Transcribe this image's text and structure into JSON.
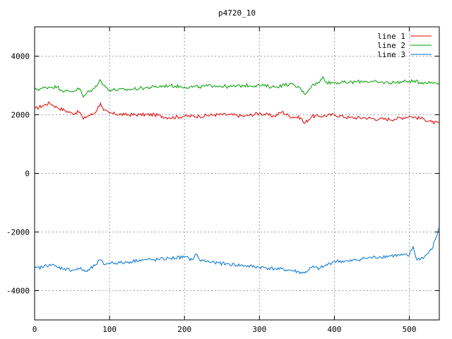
{
  "chart_data": {
    "type": "line",
    "title": "p4720_10",
    "xlabel": "",
    "ylabel": "",
    "xlim": [
      0,
      540
    ],
    "ylim": [
      -5000,
      5000
    ],
    "xticks": [
      0,
      100,
      200,
      300,
      400,
      500
    ],
    "yticks": [
      -4000,
      -2000,
      0,
      2000,
      4000
    ],
    "xtick_labels": [
      "0",
      "100",
      "200",
      "300",
      "400",
      "500"
    ],
    "ytick_labels": [
      "-4000",
      "-2000",
      "0",
      "2000",
      "4000"
    ],
    "grid": true,
    "legend_position": "top-right",
    "series": [
      {
        "name": "line 1",
        "color": "#e00000",
        "x": [
          0,
          10,
          20,
          30,
          40,
          50,
          60,
          65,
          70,
          80,
          88,
          92,
          100,
          120,
          140,
          160,
          180,
          200,
          220,
          240,
          260,
          280,
          300,
          320,
          330,
          340,
          355,
          360,
          370,
          380,
          400,
          420,
          440,
          460,
          480,
          500,
          520,
          530,
          540
        ],
        "y": [
          2200,
          2300,
          2400,
          2250,
          2150,
          2050,
          2100,
          1850,
          1950,
          2050,
          2400,
          2150,
          2050,
          2000,
          2000,
          2000,
          1900,
          1950,
          1950,
          2000,
          2000,
          1950,
          2050,
          1950,
          2100,
          1950,
          1900,
          1700,
          1950,
          1950,
          2000,
          1900,
          1900,
          1850,
          1850,
          1950,
          1850,
          1750,
          1700
        ]
      },
      {
        "name": "line 2",
        "color": "#00a000",
        "x": [
          0,
          10,
          20,
          30,
          40,
          50,
          60,
          65,
          70,
          80,
          87,
          92,
          100,
          120,
          140,
          160,
          180,
          200,
          220,
          240,
          260,
          280,
          300,
          320,
          340,
          355,
          360,
          370,
          380,
          385,
          390,
          400,
          420,
          440,
          460,
          480,
          500,
          520,
          540
        ],
        "y": [
          2850,
          2900,
          2950,
          2950,
          2800,
          2800,
          2900,
          2600,
          2750,
          2900,
          3200,
          3000,
          2850,
          2850,
          2900,
          2950,
          3000,
          2950,
          2950,
          3000,
          2950,
          3000,
          3000,
          2950,
          3050,
          2900,
          2700,
          3000,
          3100,
          3300,
          3100,
          3100,
          3100,
          3150,
          3100,
          3100,
          3150,
          3100,
          3100
        ]
      },
      {
        "name": "line 3",
        "color": "#0070d0",
        "x": [
          0,
          10,
          20,
          30,
          40,
          50,
          60,
          70,
          80,
          88,
          92,
          100,
          120,
          140,
          160,
          180,
          200,
          210,
          215,
          220,
          240,
          260,
          280,
          300,
          320,
          340,
          360,
          370,
          380,
          400,
          420,
          440,
          460,
          480,
          500,
          505,
          510,
          520,
          530,
          540
        ],
        "y": [
          -3250,
          -3200,
          -3100,
          -3200,
          -3250,
          -3300,
          -3250,
          -3350,
          -3150,
          -2950,
          -3100,
          -3050,
          -3050,
          -2950,
          -2950,
          -2900,
          -2850,
          -2950,
          -2750,
          -2950,
          -3050,
          -3100,
          -3150,
          -3200,
          -3250,
          -3300,
          -3400,
          -3200,
          -3250,
          -3000,
          -3000,
          -2900,
          -2850,
          -2800,
          -2800,
          -2500,
          -2950,
          -2850,
          -2600,
          -1850
        ]
      }
    ]
  }
}
